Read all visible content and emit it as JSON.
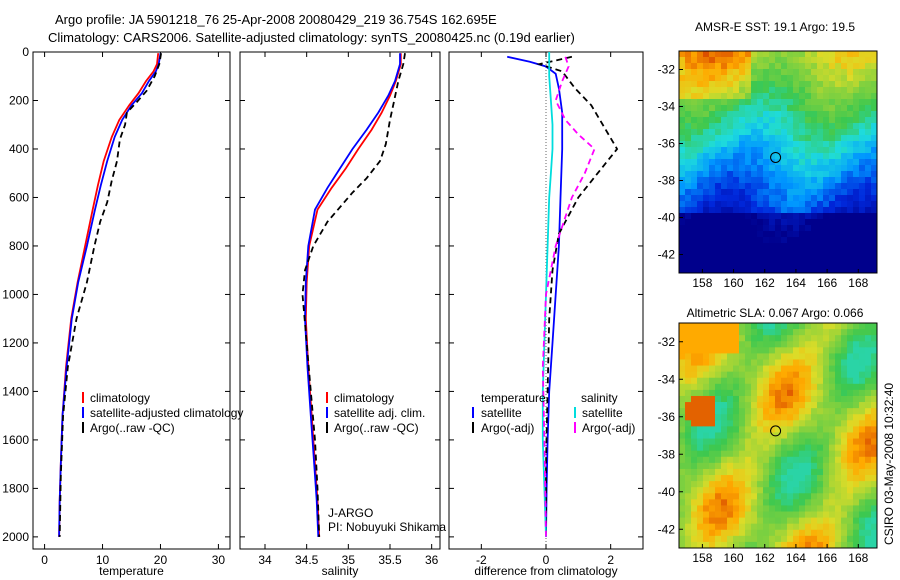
{
  "figure": {
    "title_line1": "Argo profile: JA 5901218_76 25-Apr-2008 20080429_219 36.754S 162.695E",
    "title_line2": "Climatology: CARS2006. Satellite-adjusted climatology: synTS_20080425.nc (0.19d earlier)",
    "side_label": "CSIRO 03-May-2008 10:32:40"
  },
  "chart_data": [
    {
      "id": "temperature-panel",
      "type": "line",
      "xlabel": "temperature",
      "xlim": [
        -2,
        32
      ],
      "ylim": [
        2050,
        0
      ],
      "xticks": [
        0,
        10,
        20,
        30
      ],
      "yticks": [
        0,
        200,
        400,
        600,
        800,
        1000,
        1200,
        1400,
        1600,
        1800,
        2000
      ],
      "legend": [
        "climatology",
        "satellite-adjusted climatology",
        "Argo(..raw -QC)"
      ],
      "legend_position": "bottom-right",
      "series": [
        {
          "name": "climatology",
          "color": "#ff0000",
          "dash": "",
          "x": [
            19.6,
            19.4,
            18.8,
            17.5,
            16.2,
            14.6,
            12.9,
            11.6,
            10.2,
            9.2,
            8.3,
            7.0,
            5.7,
            4.6,
            3.7,
            3.1,
            2.8,
            2.6,
            2.5
          ],
          "y": [
            5,
            50,
            80,
            120,
            170,
            220,
            280,
            350,
            450,
            550,
            650,
            800,
            950,
            1100,
            1300,
            1500,
            1700,
            1850,
            2000
          ]
        },
        {
          "name": "satellite-adjusted climatology",
          "color": "#0000ff",
          "dash": "",
          "x": [
            20.0,
            19.7,
            19.2,
            18.0,
            16.8,
            15.0,
            13.4,
            12.1,
            10.8,
            9.7,
            8.7,
            7.3,
            5.8,
            4.7,
            3.8,
            3.1,
            2.8,
            2.6,
            2.5
          ],
          "y": [
            5,
            50,
            80,
            120,
            170,
            220,
            280,
            350,
            450,
            550,
            650,
            800,
            950,
            1100,
            1300,
            1500,
            1700,
            1850,
            2000
          ]
        },
        {
          "name": "Argo(..raw -QC)",
          "color": "#000000",
          "dash": "6,4",
          "x": [
            20.1,
            19.8,
            19.0,
            17.6,
            15.8,
            14.2,
            13.9,
            13.0,
            12.5,
            11.6,
            10.8,
            9.6,
            8.6,
            7.3,
            5.5,
            4.0,
            3.2,
            2.8,
            2.6
          ],
          "y": [
            5,
            50,
            100,
            160,
            210,
            250,
            300,
            360,
            450,
            530,
            620,
            700,
            800,
            950,
            1100,
            1300,
            1500,
            1750,
            2000
          ]
        }
      ]
    },
    {
      "id": "salinity-panel",
      "type": "line",
      "xlabel": "salinity",
      "xlim": [
        33.7,
        36.1
      ],
      "ylim": [
        2050,
        0
      ],
      "xticks": [
        34,
        34.5,
        35,
        35.5,
        36
      ],
      "yticks": [
        0,
        200,
        400,
        600,
        800,
        1000,
        1200,
        1400,
        1600,
        1800,
        2000
      ],
      "legend": [
        "climatology",
        "satellite adj. clim.",
        "Argo(..raw -QC)"
      ],
      "legend_position": "bottom-right",
      "series": [
        {
          "name": "climatology",
          "color": "#ff0000",
          "dash": "",
          "x": [
            35.63,
            35.63,
            35.57,
            35.5,
            35.4,
            35.28,
            35.12,
            34.97,
            34.8,
            34.63,
            34.53,
            34.5,
            34.49,
            34.52,
            34.56,
            34.6,
            34.63,
            34.65
          ],
          "y": [
            5,
            50,
            120,
            180,
            250,
            320,
            400,
            480,
            560,
            650,
            800,
            950,
            1100,
            1300,
            1500,
            1700,
            1850,
            2000
          ]
        },
        {
          "name": "satellite adj. clim.",
          "color": "#0000ff",
          "dash": "",
          "x": [
            35.62,
            35.62,
            35.56,
            35.48,
            35.36,
            35.22,
            35.05,
            34.9,
            34.75,
            34.6,
            34.52,
            34.49,
            34.48,
            34.51,
            34.55,
            34.59,
            34.62,
            34.64
          ],
          "y": [
            5,
            50,
            120,
            180,
            250,
            320,
            400,
            480,
            560,
            650,
            800,
            950,
            1100,
            1300,
            1500,
            1700,
            1850,
            2000
          ]
        },
        {
          "name": "Argo(..raw -QC)",
          "color": "#000000",
          "dash": "6,4",
          "x": [
            35.68,
            35.66,
            35.6,
            35.55,
            35.5,
            35.45,
            35.38,
            35.22,
            35.05,
            34.9,
            34.75,
            34.58,
            34.48,
            34.45,
            34.5,
            34.55,
            34.6,
            34.63,
            34.65
          ],
          "y": [
            5,
            50,
            120,
            200,
            280,
            380,
            450,
            520,
            580,
            640,
            700,
            800,
            900,
            1000,
            1200,
            1400,
            1600,
            1800,
            2000
          ]
        }
      ]
    },
    {
      "id": "difference-panel",
      "type": "line",
      "xlabel": "difference from climatology",
      "xlim": [
        -3,
        3
      ],
      "ylim": [
        2050,
        0
      ],
      "xticks": [
        -2,
        0,
        2
      ],
      "yticks": [
        0,
        200,
        400,
        600,
        800,
        1000,
        1200,
        1400,
        1600,
        1800,
        2000
      ],
      "legend_group_titles": [
        "temperature",
        "salinity"
      ],
      "legend": [
        "satellite",
        "Argo(-adj)",
        "satellite",
        "Argo(-adj)"
      ],
      "legend_position": "bottom",
      "series": [
        {
          "name": "temperature satellite",
          "color": "#0000ff",
          "dash": "",
          "x": [
            -1.2,
            -0.5,
            0.0,
            0.3,
            0.4,
            0.5,
            0.5,
            0.45,
            0.4,
            0.3,
            0.2,
            0.1,
            0.05,
            0.02,
            0.0
          ],
          "y": [
            20,
            40,
            60,
            90,
            150,
            250,
            400,
            600,
            800,
            1000,
            1200,
            1400,
            1600,
            1800,
            2000
          ]
        },
        {
          "name": "temperature Argo(-adj)",
          "color": "#000000",
          "dash": "6,4",
          "x": [
            0.8,
            -0.2,
            0.5,
            0.9,
            1.4,
            2.2,
            1.6,
            1.0,
            0.4,
            0.2,
            0.1,
            0.05,
            0.0,
            0.0
          ],
          "y": [
            20,
            50,
            80,
            150,
            220,
            400,
            500,
            600,
            750,
            900,
            1100,
            1400,
            1700,
            2000
          ]
        },
        {
          "name": "salinity satellite",
          "color": "#00dddd",
          "dash": "",
          "x": [
            0.1,
            0.1,
            0.15,
            0.2,
            0.2,
            0.15,
            0.1,
            0.05,
            0.0,
            -0.05,
            -0.1,
            -0.1,
            -0.05,
            0.0
          ],
          "y": [
            0,
            100,
            200,
            300,
            400,
            500,
            600,
            800,
            1000,
            1200,
            1400,
            1600,
            1800,
            2000
          ]
        },
        {
          "name": "salinity Argo(-adj)",
          "color": "#ff00ff",
          "dash": "6,4",
          "x": [
            0.6,
            0.7,
            0.5,
            0.3,
            0.6,
            1.0,
            1.5,
            1.2,
            0.8,
            0.3,
            0.0,
            -0.1,
            -0.05,
            0.0
          ],
          "y": [
            20,
            60,
            120,
            200,
            280,
            340,
            400,
            500,
            600,
            800,
            1000,
            1300,
            1600,
            2000
          ]
        }
      ]
    },
    {
      "id": "sst-map",
      "type": "heatmap",
      "title": "AMSR-E SST: 19.1 Argo: 19.5",
      "xlim": [
        156.5,
        169.2
      ],
      "ylim": [
        -43,
        -31
      ],
      "xticks": [
        158,
        160,
        162,
        164,
        166,
        168
      ],
      "yticks": [
        -32,
        -34,
        -36,
        -38,
        -40,
        -42
      ],
      "argo_position": {
        "lon": 162.695,
        "lat": -36.754
      }
    },
    {
      "id": "sla-map",
      "type": "heatmap",
      "title": "Altimetric SLA: 0.067 Argo: 0.066",
      "xlim": [
        156.5,
        169.2
      ],
      "ylim": [
        -43,
        -31
      ],
      "xticks": [
        158,
        160,
        162,
        164,
        166,
        168
      ],
      "yticks": [
        -32,
        -34,
        -36,
        -38,
        -40,
        -42
      ],
      "argo_position": {
        "lon": 162.695,
        "lat": -36.754
      }
    }
  ],
  "annotations": {
    "salinity_program": "J-ARGO",
    "salinity_pi": "PI: Nobuyuki Shikama"
  }
}
